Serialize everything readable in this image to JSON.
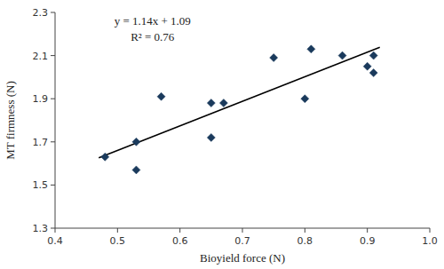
{
  "chart_data": {
    "type": "scatter",
    "xlabel": "Bioyield force (N)",
    "ylabel": "MT firmness (N)",
    "annotations": [
      "y = 1.14x + 1.09",
      "R² = 0.76"
    ],
    "xlim": [
      0.4,
      1.0
    ],
    "ylim": [
      1.3,
      2.3
    ],
    "xticks": [
      0.4,
      0.5,
      0.6,
      0.7,
      0.8,
      0.9,
      {
        "value": 1.0,
        "label": "1.0"
      }
    ],
    "yticks": [
      1.3,
      1.5,
      1.7,
      1.9,
      2.1,
      2.3
    ],
    "grid": false,
    "series": [
      {
        "type": "scatter",
        "color": "#1a3a5c",
        "marker": "diamond",
        "x": [
          0.48,
          0.53,
          0.53,
          0.57,
          0.65,
          0.65,
          0.67,
          0.75,
          0.8,
          0.81,
          0.86,
          0.9,
          0.91,
          0.91
        ],
        "values": [
          1.63,
          1.7,
          1.57,
          1.91,
          1.88,
          1.72,
          1.88,
          2.09,
          1.9,
          2.13,
          2.1,
          2.05,
          2.1,
          2.02
        ]
      },
      {
        "type": "line",
        "color": "#000000",
        "x": [
          0.47,
          0.92
        ],
        "values": [
          1.6258,
          2.1388
        ]
      }
    ]
  }
}
